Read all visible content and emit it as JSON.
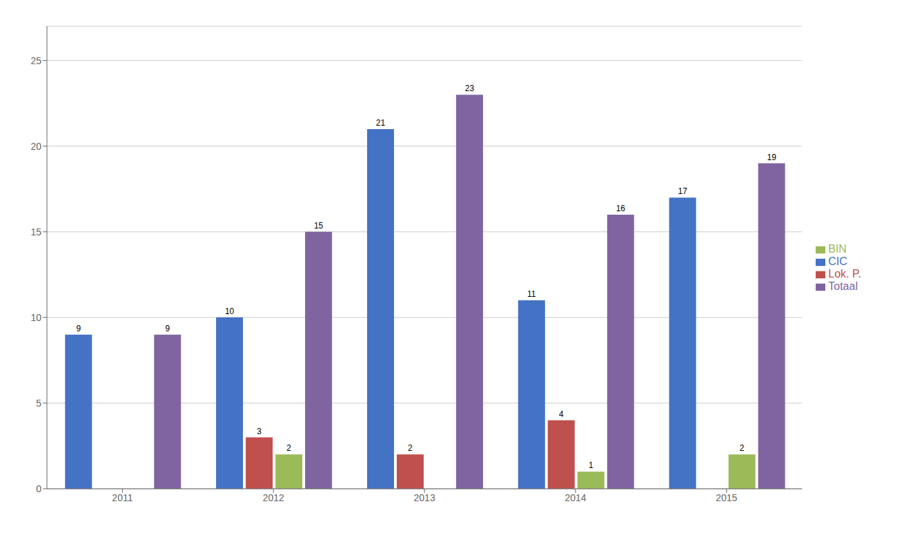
{
  "chart_data": {
    "type": "bar",
    "categories": [
      "2011",
      "2012",
      "2013",
      "2014",
      "2015"
    ],
    "series": [
      {
        "name": "CIC",
        "color": "#4472C4",
        "values": [
          9,
          10,
          21,
          11,
          17
        ]
      },
      {
        "name": "Lok. P.",
        "color": "#C0504D",
        "values": [
          0,
          3,
          2,
          4,
          0
        ]
      },
      {
        "name": "BIN",
        "color": "#9BBB59",
        "values": [
          0,
          2,
          0,
          1,
          2
        ]
      },
      {
        "name": "Totaal",
        "color": "#8064A2",
        "values": [
          9,
          15,
          23,
          16,
          19
        ]
      }
    ],
    "ylim": [
      0,
      27
    ],
    "yticks": [
      0,
      5,
      10,
      15,
      20,
      25
    ],
    "grid": true,
    "legend": "right",
    "data_labels": true
  }
}
